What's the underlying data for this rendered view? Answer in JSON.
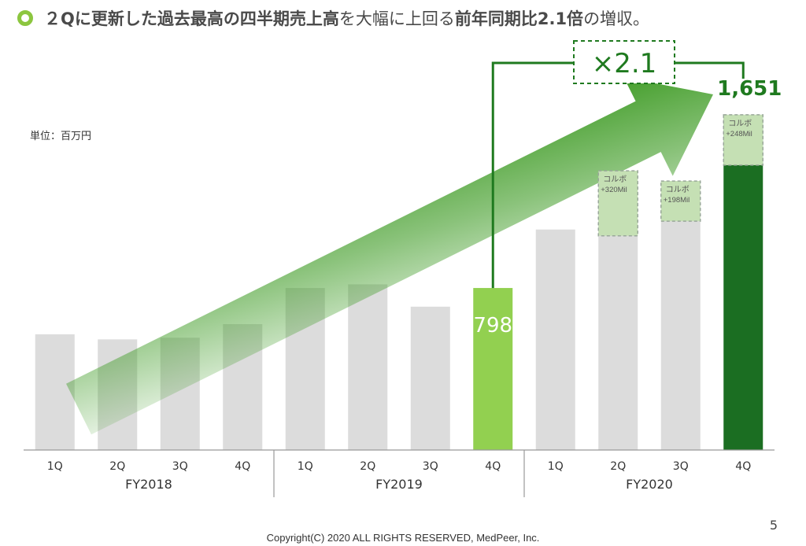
{
  "header": {
    "parts": [
      {
        "text": "２Qに更新した過去最高の四半期売上高",
        "bold": true
      },
      {
        "text": "を大幅に上回る",
        "bold": false
      },
      {
        "text": "前年同期比2.1倍",
        "bold": true
      },
      {
        "text": "の増収。",
        "bold": false
      }
    ]
  },
  "unit_label": "単位：百万円",
  "page_number": "5",
  "copyright": "Copyright(C) 2020 ALL RIGHTS RESERVED, MedPeer, Inc.",
  "colors": {
    "bar_default": "#dcdcdc",
    "bar_highlight_prev": "#92d050",
    "bar_highlight_current": "#1b6e22",
    "korubo_box": "#c5e0b4",
    "arrow": "#3c9a22",
    "bracket": "#1f7a1f",
    "axis": "#999999"
  },
  "chart_data": {
    "type": "bar",
    "categories": [
      "1Q",
      "2Q",
      "3Q",
      "4Q",
      "1Q",
      "2Q",
      "3Q",
      "4Q",
      "1Q",
      "2Q",
      "3Q",
      "4Q"
    ],
    "groups": [
      {
        "label": "FY2018",
        "count": 4
      },
      {
        "label": "FY2019",
        "count": 4
      },
      {
        "label": "FY2020",
        "count": 4
      }
    ],
    "values": [
      570,
      545,
      553,
      620,
      798,
      816,
      706,
      798,
      1086,
      1375,
      1325,
      1651
    ],
    "korubo": [
      {
        "index": 9,
        "label_line1": "コルボ",
        "label_line2": "+320Mil",
        "value": 320
      },
      {
        "index": 10,
        "label_line1": "コルボ",
        "label_line2": "+198Mil",
        "value": 198
      },
      {
        "index": 11,
        "label_line1": "コルボ",
        "label_line2": "+248Mil",
        "value": 248
      }
    ],
    "highlight_prev_index": 7,
    "highlight_current_index": 11,
    "value_labels": [
      {
        "index": 7,
        "text": "798"
      },
      {
        "index": 11,
        "text": "1,651"
      }
    ],
    "growth_label": "×2.1",
    "ylim": [
      0,
      1860
    ],
    "grid": false
  }
}
